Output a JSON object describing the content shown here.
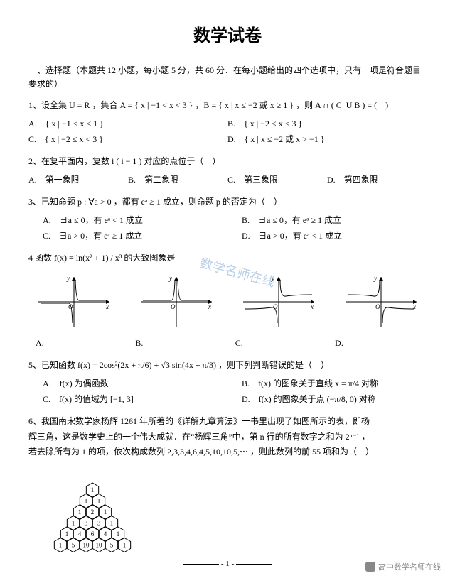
{
  "title": "数学试卷",
  "section1": "一、选择题（本题共 12 小题，每小题 5 分，共 60 分．在每小题给出的四个选项中，只有一项是符合题目要求的）",
  "q1": {
    "stem": "1、设全集 U = R ，集合 A = { x | −1 < x < 3 } ，B = { x | x ≤ −2 或 x ≥ 1 } ，则 A ∩ ( C_U B ) = (　)",
    "A": "A.　{ x | −1 < x < 1 }",
    "B": "B.　{ x | −2 < x < 3 }",
    "C": "C.　{ x | −2 ≤ x < 3 }",
    "D": "D.　{ x | x ≤ −2 或 x > −1 }"
  },
  "q2": {
    "stem": "2、在复平面内，复数 i ( i − 1 ) 对应的点位于（　）",
    "A": "A.　第一象限",
    "B": "B.　第二象限",
    "C": "C.　第三象限",
    "D": "D.　第四象限"
  },
  "q3": {
    "stem": "3、已知命题 p : ∀a > 0 ，都有 eᵃ ≥ 1 成立，则命题 p 的否定为（　）",
    "A": "A.　∃a ≤ 0，有 eᵃ < 1 成立",
    "B": "B.　∃a ≤ 0，有 eᵃ ≥ 1 成立",
    "C": "C.　∃a > 0，有 eᵃ ≥ 1 成立",
    "D": "D.　∃a > 0，有 eᵃ < 1 成立"
  },
  "q4": {
    "stem": "4 函数 f(x) = ln(x² + 1) / x³ 的大致图象是",
    "axis": {
      "stroke": "#000",
      "width": 1
    },
    "curves_stroke": "#000",
    "labels": {
      "A": "A.",
      "B": "B.",
      "C": "C.",
      "D": "D."
    }
  },
  "q5": {
    "stem": "5、已知函数 f(x) = 2cos²(2x + π/6) + √3 sin(4x + π/3) ，则下列判断错误的是（　）",
    "A": "A.　f(x) 为偶函数",
    "B": "B.　f(x) 的图象关于直线 x = π/4 对称",
    "C": "C.　f(x) 的值域为 [−1, 3]",
    "D": "D.　f(x) 的图象关于点 (−π/8, 0) 对称"
  },
  "q6": {
    "l1": "6、我国南宋数学家杨辉 1261 年所著的《详解九章算法》一书里出现了如图所示的表，即杨",
    "l2": "辉三角，这是数学史上的一个伟大成就．在“杨辉三角”中，第 n 行的所有数字之和为 2ⁿ⁻¹ ，",
    "l3": "若去除所有为 1 的项，依次构成数列 2,3,3,4,6,4,5,10,10,5,⋯ ，则此数列的前 55 项和为（　）"
  },
  "pascal": {
    "rows": [
      [
        1
      ],
      [
        1,
        1
      ],
      [
        1,
        2,
        1
      ],
      [
        1,
        3,
        3,
        1
      ],
      [
        1,
        4,
        6,
        4,
        1
      ],
      [
        1,
        5,
        10,
        10,
        5,
        1
      ]
    ],
    "hex_stroke": "#000",
    "hex_fill": "#fff",
    "text_size": 9
  },
  "pagenum": "- 1 -",
  "credit": "高中数学名师在线",
  "watermark": "数学名师在线"
}
